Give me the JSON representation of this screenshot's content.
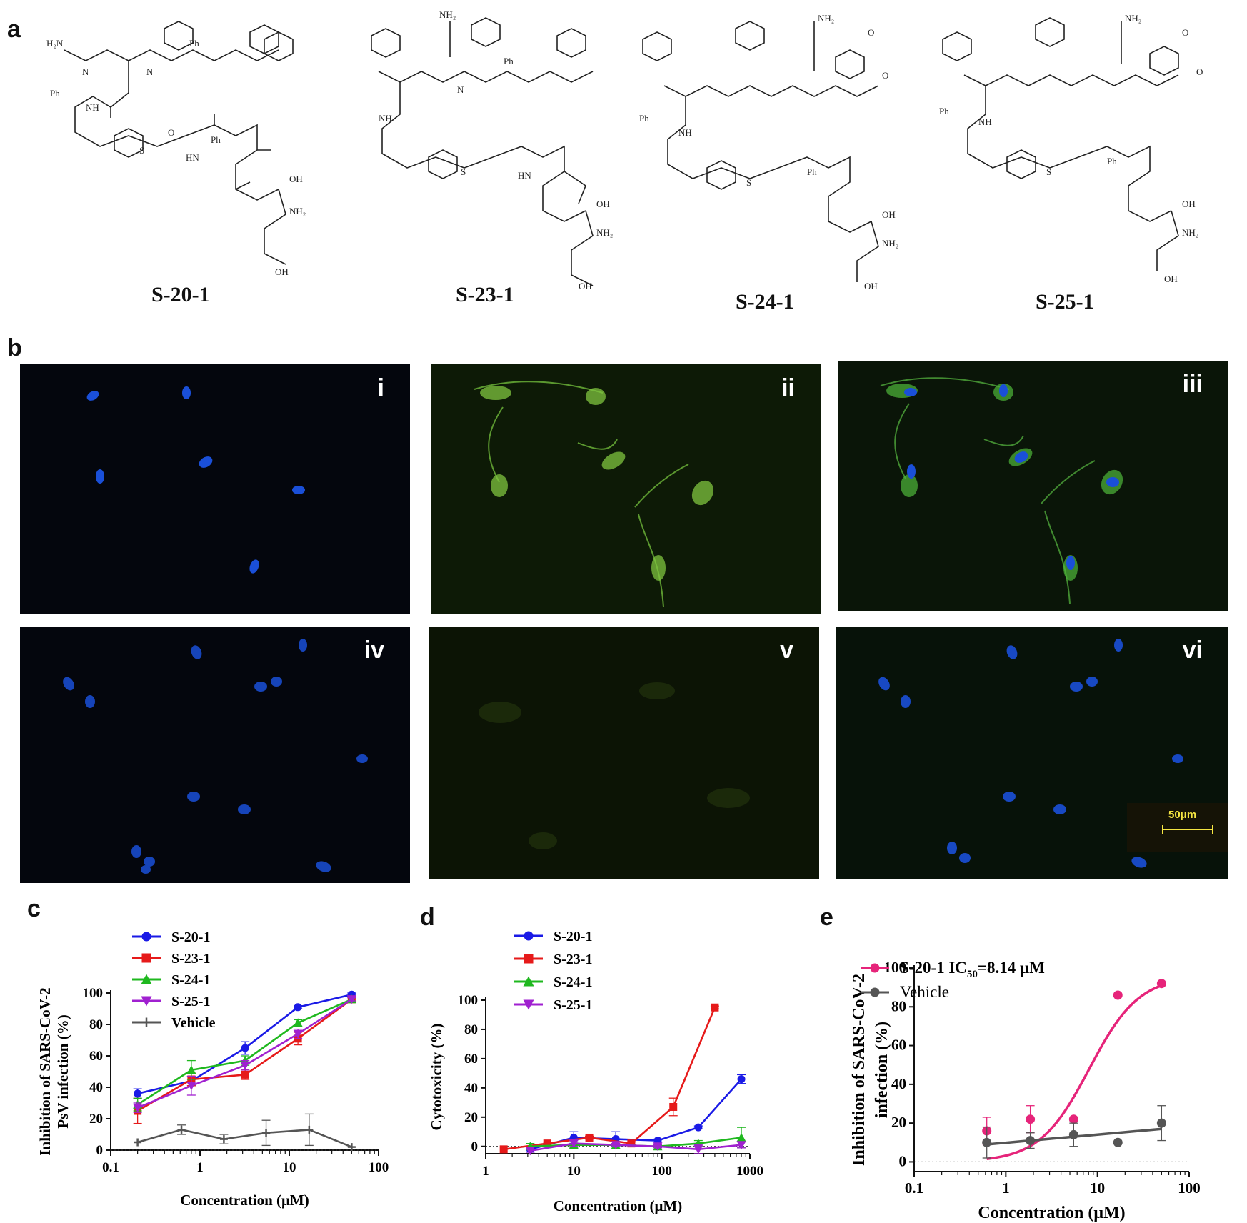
{
  "panels": {
    "a": "a",
    "b": "b",
    "c": "c",
    "d": "d",
    "e": "e"
  },
  "structure_atoms": {
    "h2n": "H₂N",
    "nh2": "NH₂",
    "nh": "NH",
    "hn": "HN",
    "h": "H",
    "n": "N",
    "o": "O",
    "s": "S",
    "ph": "Ph",
    "oh": "OH",
    "ome": "O"
  },
  "compounds": [
    "S-20-1",
    "S-23-1",
    "S-24-1",
    "S-25-1"
  ],
  "micrographs": [
    "i",
    "ii",
    "iii",
    "iv",
    "v",
    "vi"
  ],
  "micrograph_colors": {
    "nuclei": "#1a4fd8",
    "cells": "#6fb83a",
    "background_dark": "#04060d",
    "background_green": "#0d1a06"
  },
  "scale_bar": "50μm",
  "chart_data": [
    {
      "type": "line",
      "panel": "c",
      "ylabel": [
        "Inhibition of SARS-CoV-2",
        "PsV infection (%)"
      ],
      "xlabel": "Concentration (μM)",
      "xscale": "log",
      "xlim": [
        0.1,
        100
      ],
      "ylim": [
        0,
        100
      ],
      "xticks": [
        0.1,
        1,
        10,
        100
      ],
      "xtick_labels": [
        "0.1",
        "1",
        "10",
        "100"
      ],
      "yticks": [
        0,
        20,
        40,
        60,
        80,
        100
      ],
      "legend": "top-left",
      "series": [
        {
          "name": "S-20-1",
          "color": "#1a1ae6",
          "marker": "circle",
          "x": [
            0.2,
            0.8,
            3.2,
            12.5,
            50
          ],
          "y": [
            36,
            44,
            65,
            91,
            99
          ],
          "err": [
            3,
            3,
            4,
            1,
            1
          ]
        },
        {
          "name": "S-23-1",
          "color": "#e61a1a",
          "marker": "square",
          "x": [
            0.2,
            0.8,
            3.2,
            12.5,
            50
          ],
          "y": [
            25,
            45,
            48,
            71,
            96
          ],
          "err": [
            8,
            4,
            3,
            4,
            1
          ]
        },
        {
          "name": "S-24-1",
          "color": "#1fb81f",
          "marker": "triangle-up",
          "x": [
            0.2,
            0.8,
            3.2,
            12.5,
            50
          ],
          "y": [
            29,
            51,
            57,
            81,
            96
          ],
          "err": [
            4,
            6,
            3,
            2,
            1
          ]
        },
        {
          "name": "S-25-1",
          "color": "#a020d0",
          "marker": "triangle-down",
          "x": [
            0.2,
            0.8,
            3.2,
            12.5,
            50
          ],
          "y": [
            27,
            41,
            54,
            74,
            96
          ],
          "err": [
            3,
            6,
            3,
            3,
            1
          ]
        },
        {
          "name": "Vehicle",
          "color": "#555555",
          "marker": "plus",
          "x": [
            0.2,
            0.62,
            1.85,
            5.5,
            16.7,
            50
          ],
          "y": [
            5,
            13,
            7,
            11,
            13,
            2
          ],
          "err": [
            0,
            3,
            3,
            8,
            10,
            0
          ]
        }
      ]
    },
    {
      "type": "line",
      "panel": "d",
      "ylabel": [
        "Cytotoxicity (%)"
      ],
      "xlabel": "Concentration (μM)",
      "xscale": "log",
      "xlim": [
        1,
        1000
      ],
      "ylim": [
        -5,
        100
      ],
      "xticks": [
        1,
        10,
        100,
        1000
      ],
      "xtick_labels": [
        "1",
        "10",
        "100",
        "1000"
      ],
      "yticks": [
        0,
        20,
        40,
        60,
        80,
        100
      ],
      "legend": "top-left",
      "series": [
        {
          "name": "S-20-1",
          "color": "#1a1ae6",
          "marker": "circle",
          "x": [
            3.2,
            10,
            30,
            90,
            260,
            800
          ],
          "y": [
            -2,
            6,
            5,
            4,
            13,
            46
          ],
          "err": [
            2,
            4,
            5,
            1,
            1,
            3
          ]
        },
        {
          "name": "S-23-1",
          "color": "#e61a1a",
          "marker": "square",
          "x": [
            1.6,
            5,
            15,
            45,
            135,
            400
          ],
          "y": [
            -2,
            2,
            6,
            2,
            27,
            95
          ],
          "err": [
            0,
            1,
            1,
            1,
            6,
            1
          ]
        },
        {
          "name": "S-24-1",
          "color": "#1fb81f",
          "marker": "triangle-up",
          "x": [
            3.2,
            10,
            30,
            90,
            260,
            800
          ],
          "y": [
            0,
            1,
            1,
            0,
            2,
            6
          ],
          "err": [
            2,
            2,
            1,
            1,
            2,
            7
          ]
        },
        {
          "name": "S-25-1",
          "color": "#a020d0",
          "marker": "triangle-down",
          "x": [
            3.2,
            10,
            30,
            90,
            260,
            800
          ],
          "y": [
            -3,
            2,
            1,
            0,
            -2,
            1
          ],
          "err": [
            1,
            2,
            1,
            1,
            3,
            2
          ]
        }
      ]
    },
    {
      "type": "scatter",
      "panel": "e",
      "ylabel": [
        "Inhibition of SARS-CoV-2",
        "infection (%)"
      ],
      "xlabel": "Concentration (μM)",
      "xscale": "log",
      "xlim": [
        0.1,
        100
      ],
      "ylim": [
        -5,
        100
      ],
      "xticks": [
        0.1,
        1,
        10,
        100
      ],
      "xtick_labels": [
        "0.1",
        "1",
        "10",
        "100"
      ],
      "yticks": [
        0,
        20,
        40,
        60,
        80,
        100
      ],
      "legend": "top-left",
      "ic50_label": "S-20-1  IC",
      "ic50_sub": "50",
      "ic50_value": "=8.14 μM",
      "series": [
        {
          "name": "S-20-1",
          "color": "#e6247a",
          "marker": "circle",
          "x": [
            0.62,
            1.85,
            5.5,
            16.7,
            50
          ],
          "y": [
            16,
            22,
            22,
            86,
            92
          ],
          "err": [
            7,
            7,
            0,
            0,
            0
          ],
          "fit": {
            "bottom": 0,
            "top": 96,
            "ic50": 8.14,
            "hill": 1.6,
            "xrange": [
              0.62,
              50
            ]
          }
        },
        {
          "name": "Vehicle",
          "color": "#555555",
          "marker": "circle",
          "x": [
            0.62,
            1.85,
            5.5,
            16.7,
            50
          ],
          "y": [
            10,
            11,
            14,
            10,
            20
          ],
          "err": [
            8,
            4,
            6,
            0,
            9
          ],
          "fit": {
            "linear_y": [
              9,
              17
            ],
            "xrange": [
              0.62,
              50
            ]
          }
        }
      ]
    }
  ]
}
